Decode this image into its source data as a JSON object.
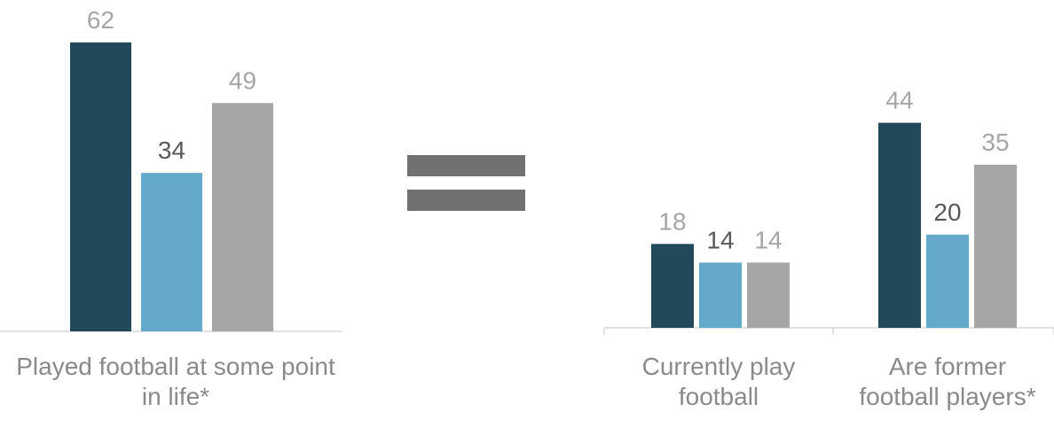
{
  "chart_data": [
    {
      "type": "bar",
      "categories": [
        "Played football at some point in life*"
      ],
      "series": [
        {
          "values": [
            62
          ]
        },
        {
          "values": [
            34
          ]
        },
        {
          "values": [
            49
          ]
        }
      ],
      "ylim": [
        0,
        62
      ],
      "grid": false
    },
    {
      "type": "bar",
      "categories": [
        "Currently play football",
        "Are former football players*"
      ],
      "series": [
        {
          "values": [
            18,
            44
          ]
        },
        {
          "values": [
            14,
            20
          ]
        },
        {
          "values": [
            14,
            35
          ]
        }
      ],
      "ylim": [
        0,
        62
      ],
      "grid": false
    }
  ],
  "series_colors": [
    "#22495a",
    "#64a9c9",
    "#a6a6a6"
  ],
  "label_colors": [
    "#a6a6a6",
    "#595959",
    "#a6a6a6"
  ],
  "symbol": "equals"
}
